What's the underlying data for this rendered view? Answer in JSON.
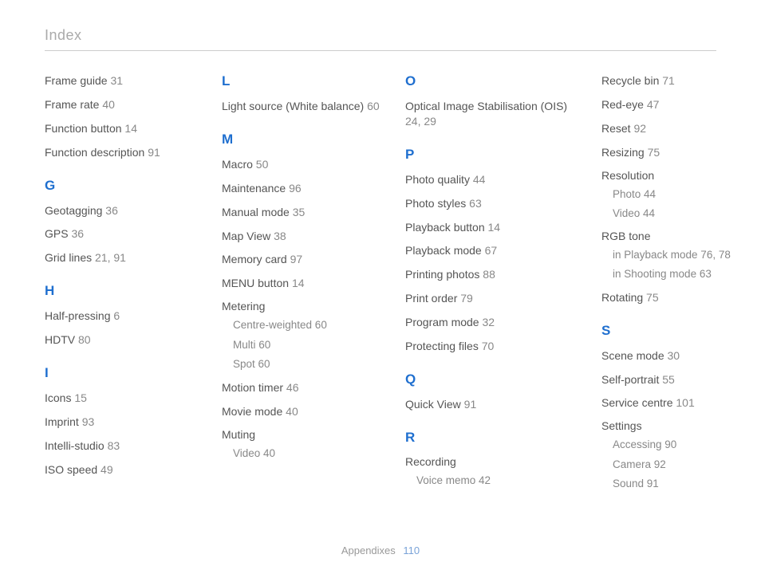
{
  "header": "Index",
  "footer": {
    "label": "Appendixes",
    "page": "110"
  },
  "columns": [
    {
      "blocks": [
        {
          "type": "plain",
          "entries": [
            {
              "term": "Frame guide",
              "pages": "31"
            },
            {
              "term": "Frame rate",
              "pages": "40"
            },
            {
              "term": "Function button",
              "pages": "14"
            },
            {
              "term": "Function description",
              "pages": "91"
            }
          ]
        },
        {
          "type": "letter",
          "letter": "G",
          "entries": [
            {
              "term": "Geotagging",
              "pages": "36"
            },
            {
              "term": "GPS",
              "pages": "36"
            },
            {
              "term": "Grid lines",
              "pages": "21, 91"
            }
          ]
        },
        {
          "type": "letter",
          "letter": "H",
          "entries": [
            {
              "term": "Half-pressing",
              "pages": "6"
            },
            {
              "term": "HDTV",
              "pages": "80"
            }
          ]
        },
        {
          "type": "letter",
          "letter": "I",
          "entries": [
            {
              "term": "Icons",
              "pages": "15"
            },
            {
              "term": "Imprint",
              "pages": "93"
            },
            {
              "term": "Intelli-studio",
              "pages": "83"
            },
            {
              "term": "ISO speed",
              "pages": "49"
            }
          ]
        }
      ]
    },
    {
      "blocks": [
        {
          "type": "letter",
          "letter": "L",
          "entries": [
            {
              "term": "Light source (White balance)",
              "pages": "60"
            }
          ]
        },
        {
          "type": "letter",
          "letter": "M",
          "entries": [
            {
              "term": "Macro",
              "pages": "50"
            },
            {
              "term": "Maintenance",
              "pages": "96"
            },
            {
              "term": "Manual mode",
              "pages": "35"
            },
            {
              "term": "Map View",
              "pages": "38"
            },
            {
              "term": "Memory card",
              "pages": "97"
            },
            {
              "term": "MENU button",
              "pages": "14"
            },
            {
              "term": "Metering",
              "subs": [
                {
                  "term": "Centre-weighted",
                  "pages": "60"
                },
                {
                  "term": "Multi",
                  "pages": "60"
                },
                {
                  "term": "Spot",
                  "pages": "60"
                }
              ]
            },
            {
              "term": "Motion timer",
              "pages": "46"
            },
            {
              "term": "Movie mode",
              "pages": "40"
            },
            {
              "term": "Muting",
              "subs": [
                {
                  "term": "Video",
                  "pages": "40"
                }
              ]
            }
          ]
        }
      ]
    },
    {
      "blocks": [
        {
          "type": "letter",
          "letter": "O",
          "entries": [
            {
              "term": "Optical Image Stabilisation (OIS)",
              "pages": "24, 29"
            }
          ]
        },
        {
          "type": "letter",
          "letter": "P",
          "entries": [
            {
              "term": "Photo quality",
              "pages": "44"
            },
            {
              "term": "Photo styles",
              "pages": "63"
            },
            {
              "term": "Playback button",
              "pages": "14"
            },
            {
              "term": "Playback mode",
              "pages": "67"
            },
            {
              "term": "Printing photos",
              "pages": "88"
            },
            {
              "term": "Print order",
              "pages": "79"
            },
            {
              "term": "Program mode",
              "pages": "32"
            },
            {
              "term": "Protecting files",
              "pages": "70"
            }
          ]
        },
        {
          "type": "letter",
          "letter": "Q",
          "entries": [
            {
              "term": "Quick View",
              "pages": "91"
            }
          ]
        },
        {
          "type": "letter",
          "letter": "R",
          "entries": [
            {
              "term": "Recording",
              "subs": [
                {
                  "term": "Voice memo",
                  "pages": "42"
                }
              ]
            }
          ]
        }
      ]
    },
    {
      "blocks": [
        {
          "type": "plain",
          "entries": [
            {
              "term": "Recycle bin",
              "pages": "71"
            },
            {
              "term": "Red-eye",
              "pages": "47"
            },
            {
              "term": "Reset",
              "pages": "92"
            },
            {
              "term": "Resizing",
              "pages": "75"
            },
            {
              "term": "Resolution",
              "subs": [
                {
                  "term": "Photo",
                  "pages": "44"
                },
                {
                  "term": "Video",
                  "pages": "44"
                }
              ]
            },
            {
              "term": "RGB tone",
              "subs": [
                {
                  "term": "in Playback mode",
                  "pages": "76, 78"
                },
                {
                  "term": "in Shooting mode",
                  "pages": "63"
                }
              ]
            },
            {
              "term": "Rotating",
              "pages": "75"
            }
          ]
        },
        {
          "type": "letter",
          "letter": "S",
          "entries": [
            {
              "term": "Scene mode",
              "pages": "30"
            },
            {
              "term": "Self-portrait",
              "pages": "55"
            },
            {
              "term": "Service centre",
              "pages": "101"
            },
            {
              "term": "Settings",
              "subs": [
                {
                  "term": "Accessing",
                  "pages": "90"
                },
                {
                  "term": "Camera",
                  "pages": "92"
                },
                {
                  "term": "Sound",
                  "pages": "91"
                }
              ]
            }
          ]
        }
      ]
    }
  ]
}
